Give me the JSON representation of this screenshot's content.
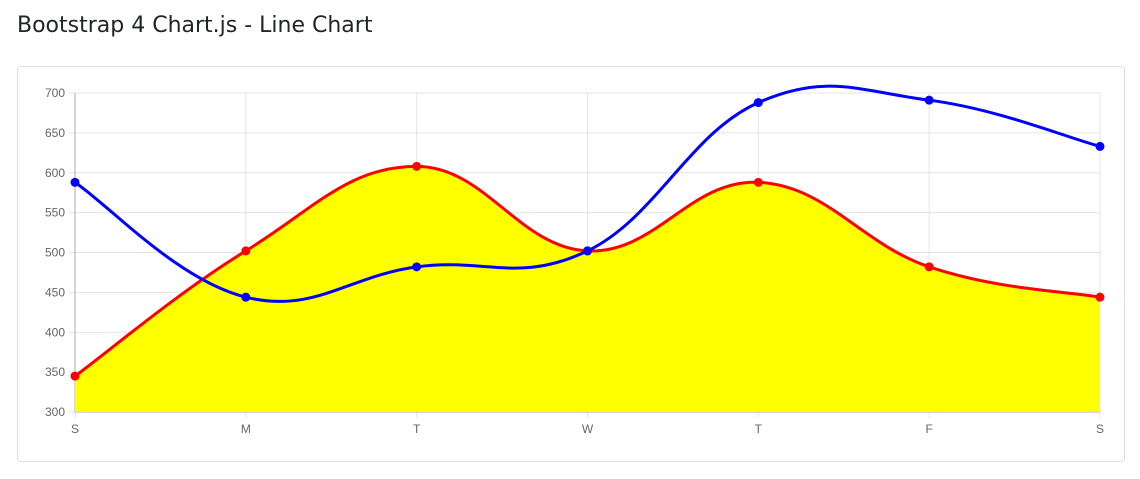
{
  "page": {
    "title": "Bootstrap 4 Chart.js - Line Chart"
  },
  "chart_data": {
    "type": "line",
    "title": "",
    "xlabel": "",
    "ylabel": "",
    "categories": [
      "S",
      "M",
      "T",
      "W",
      "T",
      "F",
      "S"
    ],
    "ylim": [
      300,
      700
    ],
    "yticks": [
      300,
      350,
      400,
      450,
      500,
      550,
      600,
      650,
      700
    ],
    "grid": true,
    "legend": "none",
    "series": [
      {
        "values": [
          345,
          502,
          608,
          502,
          588,
          482,
          444
        ],
        "line_color": "#ff0000",
        "fill_color": "#ffff00",
        "filled": true
      },
      {
        "values": [
          588,
          444,
          482,
          502,
          688,
          691,
          633
        ],
        "line_color": "#0000ff",
        "filled": false
      }
    ]
  }
}
